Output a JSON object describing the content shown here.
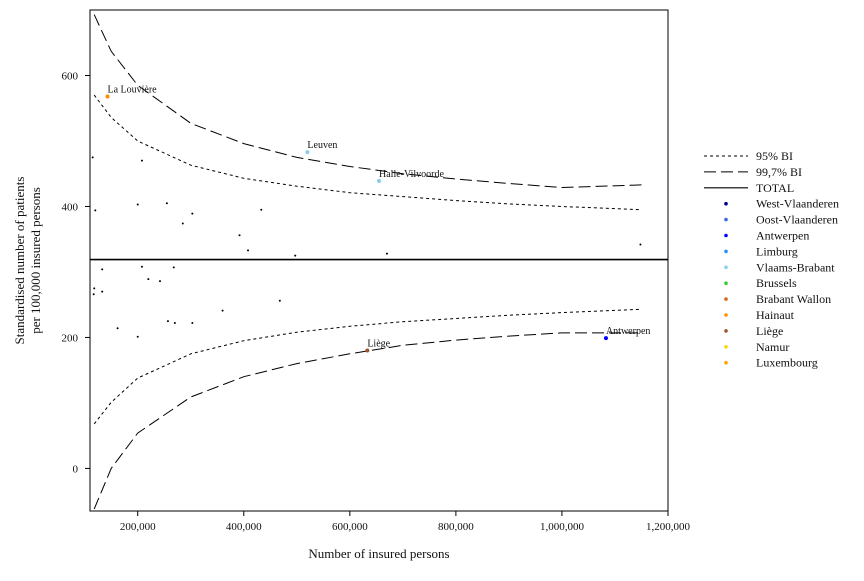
{
  "chart_data": {
    "type": "scatter",
    "xlabel": "Number of insured persons",
    "ylabel_lines": [
      "Standardised number of patients",
      "per 100,000 insured persons"
    ],
    "xlim": [
      110000,
      1200000
    ],
    "ylim": [
      -65,
      700
    ],
    "x_ticks": [
      200000,
      400000,
      600000,
      800000,
      1000000,
      1200000
    ],
    "x_tick_labels": [
      "200,000",
      "400,000",
      "600,000",
      "800,000",
      "1,000,000",
      "1,200,000"
    ],
    "y_ticks": [
      0,
      200,
      400,
      600
    ],
    "y_tick_labels": [
      "0",
      "200",
      "400",
      "600"
    ],
    "grid": false,
    "legend_position": "right",
    "total": 319,
    "control_limits": [
      {
        "name": "95% BI",
        "style": "dotted",
        "upper": [
          [
            118000,
            570
          ],
          [
            150000,
            536
          ],
          [
            200000,
            500
          ],
          [
            300000,
            463
          ],
          [
            400000,
            443
          ],
          [
            500000,
            431
          ],
          [
            600000,
            421
          ],
          [
            700000,
            415
          ],
          [
            800000,
            409
          ],
          [
            900000,
            404
          ],
          [
            1000000,
            400
          ],
          [
            1150000,
            395
          ]
        ],
        "lower": [
          [
            118000,
            68
          ],
          [
            150000,
            101
          ],
          [
            200000,
            138
          ],
          [
            300000,
            175
          ],
          [
            400000,
            195
          ],
          [
            500000,
            208
          ],
          [
            600000,
            217
          ],
          [
            700000,
            224
          ],
          [
            800000,
            229
          ],
          [
            900000,
            234
          ],
          [
            1000000,
            238
          ],
          [
            1150000,
            243
          ]
        ]
      },
      {
        "name": "99,7% BI",
        "style": "dashed",
        "upper": [
          [
            118000,
            693
          ],
          [
            150000,
            637
          ],
          [
            200000,
            585
          ],
          [
            300000,
            527
          ],
          [
            400000,
            496
          ],
          [
            500000,
            475
          ],
          [
            600000,
            461
          ],
          [
            700000,
            450
          ],
          [
            800000,
            442
          ],
          [
            900000,
            435
          ],
          [
            1000000,
            429
          ],
          [
            1150000,
            433
          ]
        ],
        "lower": [
          [
            118000,
            -62
          ],
          [
            150000,
            0
          ],
          [
            200000,
            54
          ],
          [
            300000,
            109
          ],
          [
            400000,
            140
          ],
          [
            500000,
            160
          ],
          [
            600000,
            175
          ],
          [
            700000,
            188
          ],
          [
            800000,
            196
          ],
          [
            900000,
            202
          ],
          [
            1000000,
            207
          ],
          [
            1150000,
            207
          ]
        ]
      }
    ],
    "total_line_label": "TOTAL",
    "regions": [
      {
        "name": "West-Vlaanderen",
        "color": "#00008b"
      },
      {
        "name": "Oost-Vlaanderen",
        "color": "#4169e1"
      },
      {
        "name": "Antwerpen",
        "color": "#0000ff"
      },
      {
        "name": "Limburg",
        "color": "#1e90ff"
      },
      {
        "name": "Vlaams-Brabant",
        "color": "#87ceeb"
      },
      {
        "name": "Brussels",
        "color": "#32cd32"
      },
      {
        "name": "Brabant Wallon",
        "color": "#d2691e"
      },
      {
        "name": "Hainaut",
        "color": "#ff8c00"
      },
      {
        "name": "Liège",
        "color": "#a0522d"
      },
      {
        "name": "Namur",
        "color": "#ffd700"
      },
      {
        "name": "Luxembourg",
        "color": "#ffa500"
      }
    ],
    "labeled_points": [
      {
        "label": "La Louvière",
        "x": 143000,
        "y": 568,
        "color": "#ff8c00"
      },
      {
        "label": "Leuven",
        "x": 520000,
        "y": 483,
        "color": "#87ceeb"
      },
      {
        "label": "Halle-Vilvoorde",
        "x": 655000,
        "y": 439,
        "color": "#87ceeb"
      },
      {
        "label": "Liège",
        "x": 633000,
        "y": 180,
        "color": "#a0522d"
      },
      {
        "label": "Antwerpen",
        "x": 1083000,
        "y": 199,
        "color": "#0000ff"
      }
    ],
    "points": [
      {
        "x": 115000,
        "y": 475
      },
      {
        "x": 120000,
        "y": 394
      },
      {
        "x": 118000,
        "y": 275
      },
      {
        "x": 117000,
        "y": 266
      },
      {
        "x": 133000,
        "y": 304
      },
      {
        "x": 133000,
        "y": 270
      },
      {
        "x": 162000,
        "y": 214
      },
      {
        "x": 200000,
        "y": 403
      },
      {
        "x": 200000,
        "y": 201
      },
      {
        "x": 208000,
        "y": 470
      },
      {
        "x": 208000,
        "y": 308
      },
      {
        "x": 220000,
        "y": 289
      },
      {
        "x": 242000,
        "y": 286
      },
      {
        "x": 255000,
        "y": 405
      },
      {
        "x": 257000,
        "y": 225
      },
      {
        "x": 268000,
        "y": 307
      },
      {
        "x": 270000,
        "y": 222
      },
      {
        "x": 285000,
        "y": 374
      },
      {
        "x": 303000,
        "y": 389
      },
      {
        "x": 303000,
        "y": 222
      },
      {
        "x": 360000,
        "y": 241
      },
      {
        "x": 392000,
        "y": 356
      },
      {
        "x": 408000,
        "y": 333
      },
      {
        "x": 433000,
        "y": 395
      },
      {
        "x": 468000,
        "y": 256
      },
      {
        "x": 497000,
        "y": 325
      },
      {
        "x": 670000,
        "y": 328
      },
      {
        "x": 1148000,
        "y": 342
      }
    ]
  }
}
